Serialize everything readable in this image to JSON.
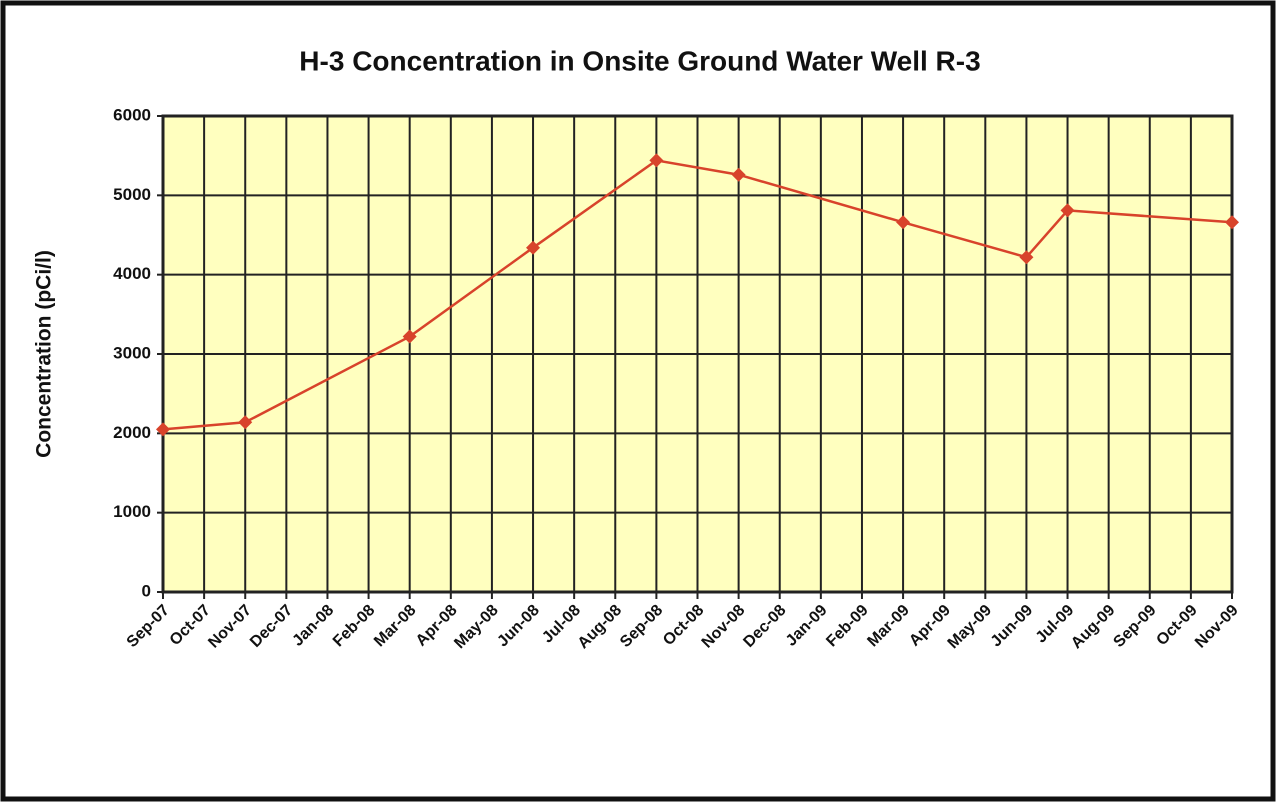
{
  "chart_data": {
    "type": "line",
    "title": "H-3 Concentration in Onsite Ground Water Well R-3",
    "y_label": "Concentration (pCi/l)",
    "categories": [
      "Sep-07",
      "Oct-07",
      "Nov-07",
      "Dec-07",
      "Jan-08",
      "Feb-08",
      "Mar-08",
      "Apr-08",
      "May-08",
      "Jun-08",
      "Jul-08",
      "Aug-08",
      "Sep-08",
      "Oct-08",
      "Nov-08",
      "Dec-08",
      "Jan-09",
      "Feb-09",
      "Mar-09",
      "Apr-09",
      "May-09",
      "Jun-09",
      "Jul-09",
      "Aug-09",
      "Sep-09",
      "Oct-09",
      "Nov-09"
    ],
    "series": [
      {
        "color": "#d8432b",
        "x": [
          "Sep-07",
          "Nov-07",
          "Mar-08",
          "Jun-08",
          "Sep-08",
          "Nov-08",
          "Mar-09",
          "Jun-09",
          "Jul-09",
          "Nov-09"
        ],
        "values": [
          2050,
          2140,
          3220,
          4340,
          5440,
          5260,
          4660,
          4220,
          4810,
          4660
        ]
      }
    ],
    "ylim": [
      0,
      6000
    ],
    "yticks": [
      0,
      1000,
      2000,
      3000,
      4000,
      5000,
      6000
    ],
    "grid": true,
    "plot_background": "#ffffbf"
  }
}
